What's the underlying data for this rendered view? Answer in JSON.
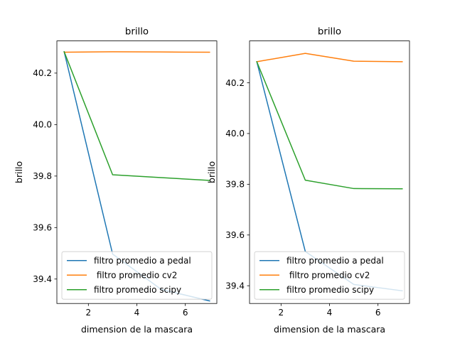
{
  "chart_data": [
    {
      "type": "line",
      "title": "brillo",
      "xlabel": "dimension de la mascara",
      "ylabel": "brillo",
      "xlim": [
        0.7,
        7.3
      ],
      "ylim": [
        39.305,
        40.325
      ],
      "xticks": [
        2,
        4,
        6
      ],
      "yticks": [
        39.4,
        39.6,
        39.8,
        40.0,
        40.2
      ],
      "x": [
        1,
        3,
        5,
        7
      ],
      "series": [
        {
          "name": "filtro promedio a pedal",
          "color": "#1f77b4",
          "values": [
            40.283,
            39.497,
            39.36,
            39.315
          ]
        },
        {
          "name": " filtro promedio cv2",
          "color": "#ff7f0e",
          "values": [
            40.281,
            40.283,
            40.282,
            40.281
          ]
        },
        {
          "name": "filtro promedio scipy",
          "color": "#2ca02c",
          "values": [
            40.283,
            39.805,
            39.794,
            39.783
          ]
        }
      ],
      "legend": "lower-center",
      "grid": false
    },
    {
      "type": "line",
      "title": "brillo",
      "xlabel": "dimension de la mascara",
      "ylabel": "brillo",
      "xlim": [
        0.7,
        7.3
      ],
      "ylim": [
        39.33,
        40.365
      ],
      "xticks": [
        2,
        4,
        6
      ],
      "yticks": [
        39.4,
        39.6,
        39.8,
        40.0,
        40.2
      ],
      "x": [
        1,
        3,
        5,
        7
      ],
      "series": [
        {
          "name": "filtro promedio a pedal",
          "color": "#1f77b4",
          "values": [
            40.283,
            39.535,
            39.405,
            39.38
          ]
        },
        {
          "name": " filtro promedio cv2",
          "color": "#ff7f0e",
          "values": [
            40.283,
            40.316,
            40.285,
            40.283
          ]
        },
        {
          "name": "filtro promedio scipy",
          "color": "#2ca02c",
          "values": [
            40.283,
            39.816,
            39.783,
            39.782
          ]
        }
      ],
      "legend": "lower-center",
      "grid": false
    }
  ]
}
